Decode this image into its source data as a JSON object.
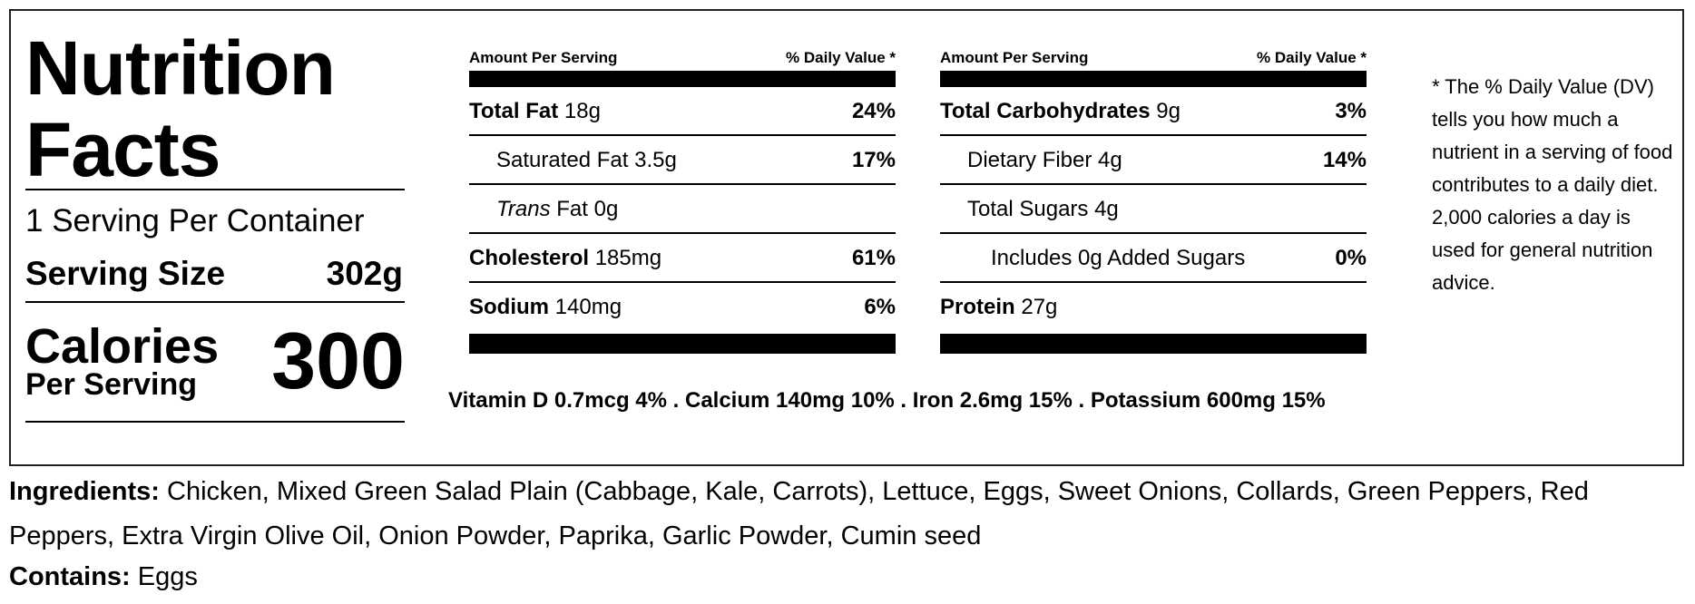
{
  "label": {
    "title_line1": "Nutrition",
    "title_line2": "Facts",
    "servings_per_container": "1 Serving Per Container",
    "serving_size_label": "Serving Size",
    "serving_size_value": "302g",
    "calories_label": "Calories",
    "per_serving_label": "Per Serving",
    "calories_value": "300"
  },
  "table_header": {
    "amount": "Amount Per Serving",
    "daily_value": "% Daily Value *"
  },
  "left_table": [
    {
      "name": "Total Fat",
      "amount": "18g",
      "pct": "24%"
    },
    {
      "name": "Saturated Fat",
      "amount": "3.5g",
      "pct": "17%"
    },
    {
      "name_italic": "Trans",
      "name": "Fat",
      "amount": "0g",
      "pct": ""
    },
    {
      "name": "Cholesterol",
      "amount": "185mg",
      "pct": "61%"
    },
    {
      "name": "Sodium",
      "amount": "140mg",
      "pct": "6%"
    }
  ],
  "right_table": [
    {
      "name": "Total Carbohydrates",
      "amount": "9g",
      "pct": "3%"
    },
    {
      "name": "Dietary Fiber",
      "amount": "4g",
      "pct": "14%"
    },
    {
      "name": "Total Sugars",
      "amount": "4g",
      "pct": ""
    },
    {
      "name": "Includes 0g Added Sugars",
      "amount": "",
      "pct": "0%"
    },
    {
      "name": "Protein",
      "amount": "27g",
      "pct": ""
    }
  ],
  "vitamins_line": "Vitamin D 0.7mcg 4% . Calcium 140mg 10% . Iron 2.6mg 15% . Potassium 600mg 15%",
  "dv_note": "* The % Daily Value (DV) tells you how much a nutrient in a serving of food contributes to a daily diet. 2,000 calories a day is used for general nutrition advice.",
  "ingredients": {
    "label": "Ingredients:",
    "text": "Chicken, Mixed Green Salad Plain (Cabbage, Kale, Carrots), Lettuce, Eggs, Sweet Onions, Collards, Green Peppers, Red Peppers, Extra Virgin Olive Oil, Onion Powder, Paprika, Garlic Powder, Cumin seed"
  },
  "contains": {
    "label": "Contains:",
    "text": "Eggs"
  }
}
